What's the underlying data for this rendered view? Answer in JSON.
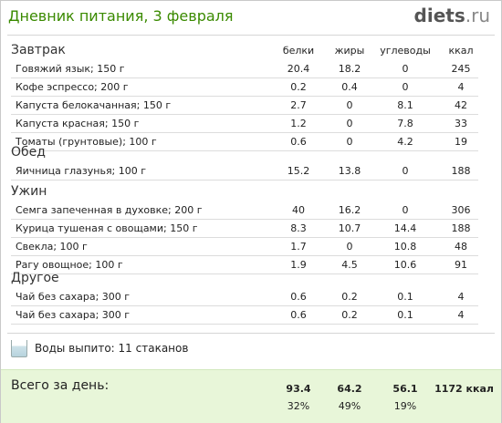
{
  "header": {
    "title": "Дневник питания, 3 февраля",
    "logo_main": "diets",
    "logo_suffix": ".ru"
  },
  "columns": {
    "protein": "белки",
    "fat": "жиры",
    "carbs": "углеводы",
    "kcal": "ккал"
  },
  "sections": [
    {
      "title": "Завтрак",
      "items": [
        {
          "name": "Говяжий язык; 150 г",
          "protein": "20.4",
          "fat": "18.2",
          "carbs": "0",
          "kcal": "245"
        },
        {
          "name": "Кофе эспрессо; 200 г",
          "protein": "0.2",
          "fat": "0.4",
          "carbs": "0",
          "kcal": "4"
        },
        {
          "name": "Капуста белокачанная; 150 г",
          "protein": "2.7",
          "fat": "0",
          "carbs": "8.1",
          "kcal": "42"
        },
        {
          "name": "Капуста красная; 150 г",
          "protein": "1.2",
          "fat": "0",
          "carbs": "7.8",
          "kcal": "33"
        },
        {
          "name": "Томаты (грунтовые); 100 г",
          "protein": "0.6",
          "fat": "0",
          "carbs": "4.2",
          "kcal": "19"
        }
      ]
    },
    {
      "title": "Обед",
      "items": [
        {
          "name": "Яичница глазунья; 100 г",
          "protein": "15.2",
          "fat": "13.8",
          "carbs": "0",
          "kcal": "188"
        }
      ]
    },
    {
      "title": "Ужин",
      "items": [
        {
          "name": "Семга запеченная в духовке; 200 г",
          "protein": "40",
          "fat": "16.2",
          "carbs": "0",
          "kcal": "306"
        },
        {
          "name": "Курица тушеная с овощами; 150 г",
          "protein": "8.3",
          "fat": "10.7",
          "carbs": "14.4",
          "kcal": "188"
        },
        {
          "name": "Свекла; 100 г",
          "protein": "1.7",
          "fat": "0",
          "carbs": "10.8",
          "kcal": "48"
        },
        {
          "name": "Рагу овощное; 100 г",
          "protein": "1.9",
          "fat": "4.5",
          "carbs": "10.6",
          "kcal": "91"
        }
      ]
    },
    {
      "title": "Другое",
      "items": [
        {
          "name": "Чай без сахара; 300 г",
          "protein": "0.6",
          "fat": "0.2",
          "carbs": "0.1",
          "kcal": "4"
        },
        {
          "name": "Чай без сахара; 300 г",
          "protein": "0.6",
          "fat": "0.2",
          "carbs": "0.1",
          "kcal": "4"
        }
      ]
    }
  ],
  "water": {
    "text": "Воды выпито: 11 стаканов",
    "icon": "water-glass-icon"
  },
  "totals": {
    "label": "Всего за день:",
    "protein": "93.4",
    "fat": "64.2",
    "carbs": "56.1",
    "kcal": "1172 ккал",
    "protein_pct": "32%",
    "fat_pct": "49%",
    "carbs_pct": "19%"
  },
  "colors": {
    "title_green": "#3a8a00",
    "totals_bg": "#e8f6d9"
  }
}
